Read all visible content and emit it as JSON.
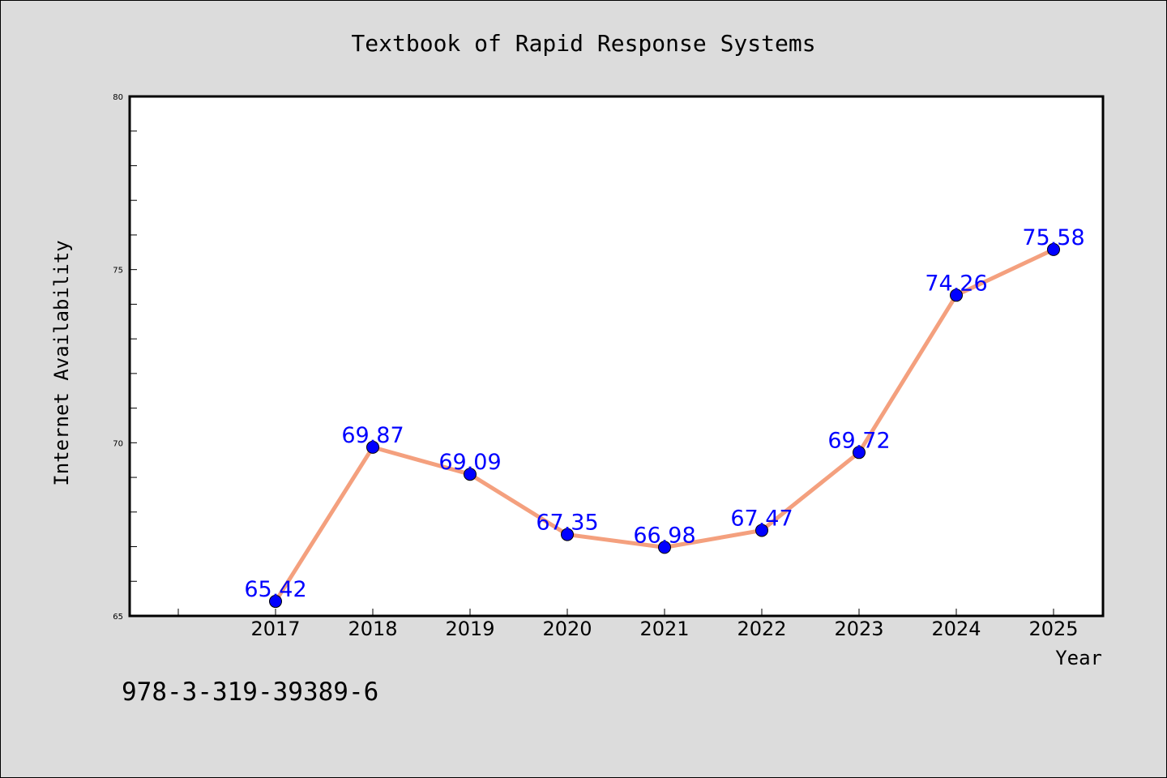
{
  "chart_data": {
    "type": "line",
    "title": "Textbook of Rapid Response Systems",
    "xlabel": "Year",
    "ylabel": "Internet Availability",
    "categories": [
      "2017",
      "2018",
      "2019",
      "2020",
      "2021",
      "2022",
      "2023",
      "2024",
      "2025"
    ],
    "series": [
      {
        "values": [
          65.42,
          69.87,
          69.09,
          67.35,
          66.98,
          67.47,
          69.72,
          74.26,
          75.58
        ],
        "data_labels": [
          "65.42",
          "69.87",
          "69.09",
          "67.35",
          "66.98",
          "67.47",
          "69.72",
          "74.26",
          "75.58"
        ],
        "line_color": "#f4a07e",
        "marker_color": "#0000ff"
      }
    ],
    "ylim": [
      65,
      80
    ],
    "yticks": [
      "65",
      "70",
      "75",
      "80"
    ],
    "grid": false,
    "legend": "none",
    "label_color": "#0000ff"
  },
  "footer": {
    "isbn": "978-3-319-39389-6"
  }
}
